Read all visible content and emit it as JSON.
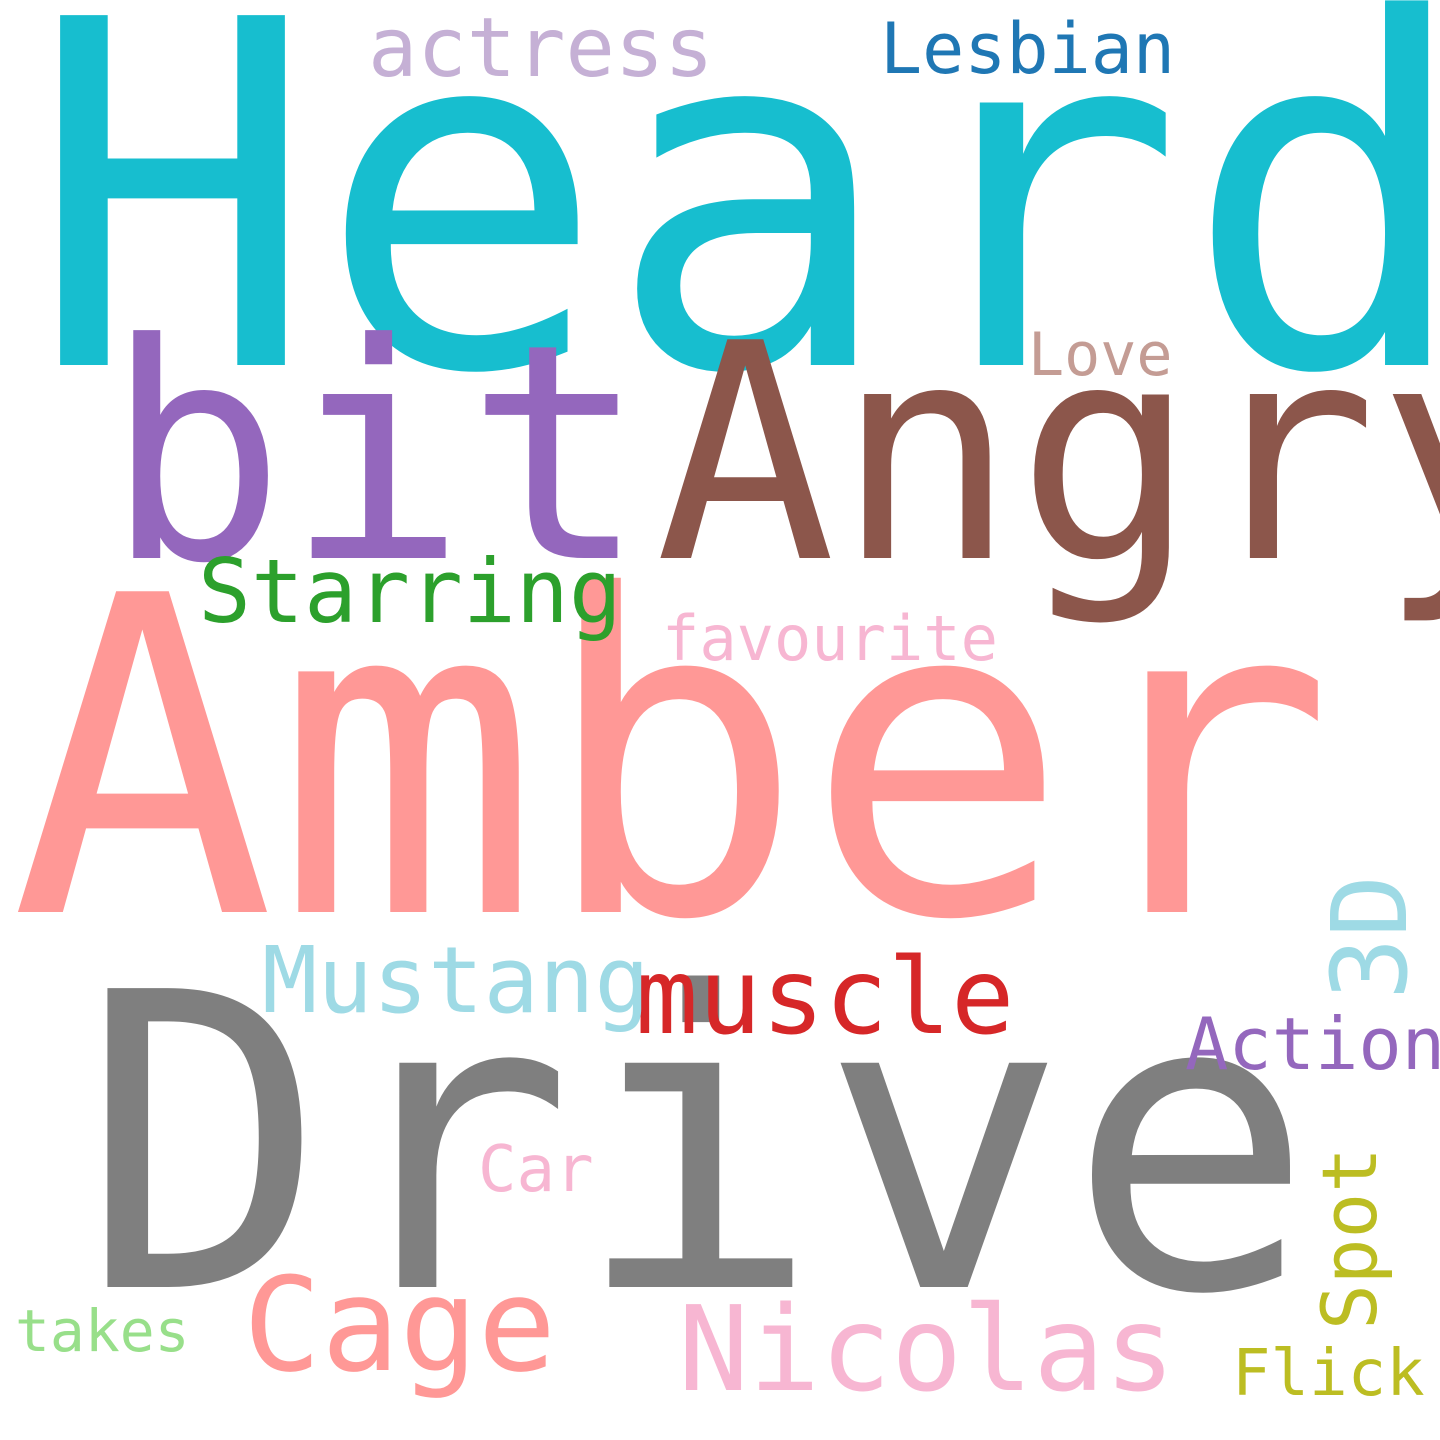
{
  "words": [
    {
      "id": "heard",
      "text": "Heard",
      "color": "#17becf",
      "orientation": "horizontal"
    },
    {
      "id": "amber",
      "text": "Amber",
      "color": "#ff9896",
      "orientation": "horizontal"
    },
    {
      "id": "drive",
      "text": "Drive",
      "color": "#7f7f7f",
      "orientation": "horizontal"
    },
    {
      "id": "angry",
      "text": "Angry",
      "color": "#8c564b",
      "orientation": "horizontal"
    },
    {
      "id": "bit",
      "text": "bit",
      "color": "#9467bd",
      "orientation": "horizontal"
    },
    {
      "id": "muscle",
      "text": "muscle",
      "color": "#d62728",
      "orientation": "horizontal"
    },
    {
      "id": "nicolas",
      "text": "Nicolas",
      "color": "#f7b6d2",
      "orientation": "horizontal"
    },
    {
      "id": "cage",
      "text": "Cage",
      "color": "#ff9896",
      "orientation": "horizontal"
    },
    {
      "id": "starring",
      "text": "Starring",
      "color": "#2ca02c",
      "orientation": "horizontal"
    },
    {
      "id": "mustang",
      "text": "Mustang",
      "color": "#9edae5",
      "orientation": "horizontal"
    },
    {
      "id": "actress",
      "text": "actress",
      "color": "#c5b0d5",
      "orientation": "horizontal"
    },
    {
      "id": "lesbian",
      "text": "Lesbian",
      "color": "#1f77b4",
      "orientation": "horizontal"
    },
    {
      "id": "love",
      "text": "Love",
      "color": "#c49c94",
      "orientation": "horizontal"
    },
    {
      "id": "favourite",
      "text": "favourite",
      "color": "#f7b6d2",
      "orientation": "horizontal"
    },
    {
      "id": "action",
      "text": "Action",
      "color": "#9467bd",
      "orientation": "horizontal"
    },
    {
      "id": "car",
      "text": "Car",
      "color": "#f7b6d2",
      "orientation": "horizontal"
    },
    {
      "id": "takes",
      "text": "takes",
      "color": "#98df8a",
      "orientation": "horizontal"
    },
    {
      "id": "flick",
      "text": "Flick",
      "color": "#bcbd22",
      "orientation": "horizontal"
    },
    {
      "id": "3d",
      "text": "3D",
      "color": "#9edae5",
      "orientation": "vertical"
    },
    {
      "id": "spot",
      "text": "Spot",
      "color": "#bcbd22",
      "orientation": "vertical"
    }
  ]
}
